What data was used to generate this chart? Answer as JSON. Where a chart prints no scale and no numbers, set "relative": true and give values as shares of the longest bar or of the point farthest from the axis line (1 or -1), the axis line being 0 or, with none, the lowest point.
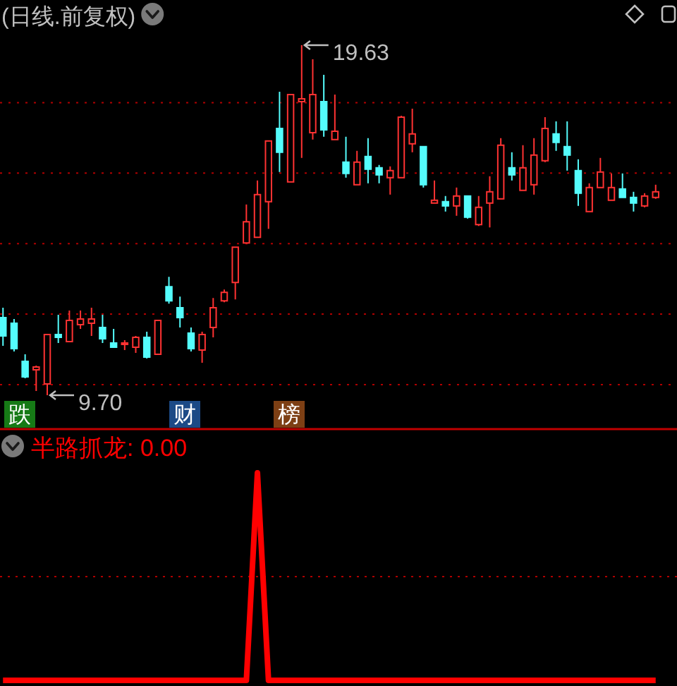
{
  "chart_data": [
    {
      "type": "candlestick",
      "title": "(日线.前复权)",
      "categories": [
        null,
        null,
        null,
        null,
        null,
        null,
        null,
        null,
        null,
        null,
        null,
        null,
        null,
        null,
        null,
        null,
        null,
        null,
        null,
        null,
        null,
        null,
        null,
        null,
        null,
        null,
        null,
        null,
        null,
        null,
        null,
        null,
        null,
        null,
        null,
        null,
        null,
        null,
        null,
        null,
        null,
        null,
        null,
        null,
        null,
        null,
        null,
        null,
        null,
        null,
        null,
        null,
        null,
        null,
        null,
        null,
        null,
        null,
        null,
        null
      ],
      "ohlc": [
        [
          11.9,
          12.18,
          11.1,
          11.38
        ],
        [
          11.74,
          11.86,
          10.94,
          11.02
        ],
        [
          10.66,
          10.86,
          10.18,
          10.22
        ],
        [
          10.42,
          10.54,
          9.82,
          10.5
        ],
        [
          10.02,
          11.42,
          9.7,
          11.42
        ],
        [
          11.42,
          11.98,
          11.18,
          11.34
        ],
        [
          11.22,
          12.1,
          11.22,
          11.82
        ],
        [
          11.7,
          12.1,
          11.58,
          11.86
        ],
        [
          11.74,
          12.18,
          11.38,
          11.86
        ],
        [
          11.62,
          11.98,
          11.18,
          11.3
        ],
        [
          11.18,
          11.58,
          11.06,
          11.06
        ],
        [
          11.14,
          11.26,
          10.98,
          11.18
        ],
        [
          11.06,
          11.38,
          10.9,
          11.34
        ],
        [
          11.34,
          11.5,
          10.74,
          10.78
        ],
        [
          10.86,
          11.82,
          10.86,
          11.82
        ],
        [
          12.78,
          13.06,
          12.3,
          12.38
        ],
        [
          12.18,
          12.5,
          11.62,
          11.9
        ],
        [
          11.46,
          11.62,
          10.94,
          11.02
        ],
        [
          10.98,
          11.5,
          10.62,
          11.42
        ],
        [
          11.62,
          12.46,
          11.34,
          12.18
        ],
        [
          12.38,
          12.7,
          12.34,
          12.62
        ],
        [
          12.9,
          13.9,
          12.42,
          13.9
        ],
        [
          14.02,
          15.11,
          14.02,
          14.62
        ],
        [
          14.18,
          15.79,
          14.18,
          15.39
        ],
        [
          15.19,
          16.91,
          14.42,
          16.91
        ],
        [
          17.27,
          18.31,
          16.03,
          16.59
        ],
        [
          15.75,
          18.23,
          15.75,
          18.23
        ],
        [
          18.03,
          19.63,
          16.43,
          18.11
        ],
        [
          17.15,
          19.23,
          16.95,
          18.23
        ],
        [
          18.03,
          18.79,
          17.03,
          17.23
        ],
        [
          16.95,
          18.23,
          16.95,
          17.19
        ],
        [
          16.31,
          17.03,
          15.87,
          15.99
        ],
        [
          15.67,
          16.63,
          15.67,
          16.31
        ],
        [
          16.47,
          16.99,
          15.71,
          16.11
        ],
        [
          16.15,
          16.23,
          15.71,
          15.95
        ],
        [
          15.87,
          16.19,
          15.39,
          16.07
        ],
        [
          15.87,
          17.63,
          15.87,
          17.59
        ],
        [
          16.83,
          17.83,
          16.59,
          17.11
        ],
        [
          16.75,
          16.75,
          15.59,
          15.67
        ],
        [
          15.15,
          15.79,
          15.15,
          15.23
        ],
        [
          15.19,
          15.35,
          14.91,
          15.07
        ],
        [
          15.07,
          15.59,
          14.79,
          15.35
        ],
        [
          15.35,
          15.35,
          14.71,
          14.75
        ],
        [
          14.54,
          15.35,
          14.5,
          15.03
        ],
        [
          15.15,
          15.91,
          14.46,
          15.47
        ],
        [
          15.27,
          16.99,
          15.27,
          16.79
        ],
        [
          16.15,
          16.59,
          15.79,
          15.95
        ],
        [
          15.51,
          16.79,
          15.51,
          16.15
        ],
        [
          15.67,
          16.99,
          15.39,
          16.51
        ],
        [
          16.35,
          17.59,
          16.31,
          17.27
        ],
        [
          17.11,
          17.47,
          16.63,
          16.87
        ],
        [
          16.75,
          17.47,
          16.07,
          16.51
        ],
        [
          16.07,
          16.39,
          15.07,
          15.43
        ],
        [
          14.91,
          15.71,
          14.91,
          15.59
        ],
        [
          15.59,
          16.43,
          15.59,
          16.03
        ],
        [
          15.23,
          15.99,
          15.23,
          15.59
        ],
        [
          15.55,
          15.99,
          15.31,
          15.31
        ],
        [
          15.31,
          15.47,
          14.91,
          15.15
        ],
        [
          15.07,
          15.43,
          15.03,
          15.35
        ],
        [
          15.31,
          15.67,
          15.27,
          15.47
        ]
      ],
      "colors": [
        "#54fcfc",
        "#54fcfc",
        "#54fcfc",
        "#ff3232",
        "#ff3232",
        "#54fcfc",
        "#ff3232",
        "#ff3232",
        "#ff3232",
        "#54fcfc",
        "#54fcfc",
        "#ff3232",
        "#ff3232",
        "#54fcfc",
        "#ff3232",
        "#54fcfc",
        "#54fcfc",
        "#54fcfc",
        "#ff3232",
        "#ff3232",
        "#ff3232",
        "#ff3232",
        "#ff3232",
        "#ff3232",
        "#ff3232",
        "#54fcfc",
        "#ff3232",
        "#ff3232",
        "#ff3232",
        "#54fcfc",
        "#ff3232",
        "#54fcfc",
        "#ff3232",
        "#54fcfc",
        "#54fcfc",
        "#ff3232",
        "#ff3232",
        "#ff3232",
        "#54fcfc",
        "#ff3232",
        "#54fcfc",
        "#ff3232",
        "#54fcfc",
        "#ff3232",
        "#ff3232",
        "#ff3232",
        "#54fcfc",
        "#ff3232",
        "#ff3232",
        "#ff3232",
        "#54fcfc",
        "#54fcfc",
        "#54fcfc",
        "#ff3232",
        "#ff3232",
        "#ff3232",
        "#54fcfc",
        "#54fcfc",
        "#ff3232",
        "#ff3232"
      ],
      "yticks": [
        {
          "value": 10,
          "label": null
        },
        {
          "value": 12,
          "label": null
        },
        {
          "value": 14,
          "label": null
        },
        {
          "value": 16,
          "label": null
        },
        {
          "value": 18,
          "label": null
        }
      ],
      "grid": "y",
      "tick_labels": false,
      "annotations": [
        "19.63",
        "9.70",
        "跌",
        "财",
        "榜"
      ]
    },
    {
      "type": "line",
      "title": "半路抓龙: 0.00",
      "categories": [
        null,
        null,
        null,
        null,
        null,
        null,
        null,
        null,
        null,
        null,
        null,
        null,
        null,
        null,
        null,
        null,
        null,
        null,
        null,
        null,
        null,
        null,
        null,
        null,
        null,
        null,
        null,
        null,
        null,
        null,
        null,
        null,
        null,
        null,
        null,
        null,
        null,
        null,
        null,
        null,
        null,
        null,
        null,
        null,
        null,
        null,
        null,
        null,
        null,
        null,
        null,
        null,
        null,
        null,
        null,
        null,
        null,
        null,
        null,
        null
      ],
      "series": [
        {
          "color": "#ff0000",
          "values": [
            0,
            0,
            0,
            0,
            0,
            0,
            0,
            0,
            0,
            0,
            0,
            0,
            0,
            0,
            0,
            0,
            0,
            0,
            0,
            0,
            0,
            0,
            0,
            1,
            0,
            0,
            0,
            0,
            0,
            0,
            0,
            0,
            0,
            0,
            0,
            0,
            0,
            0,
            0,
            0,
            0,
            0,
            0,
            0,
            0,
            0,
            0,
            0,
            0,
            0,
            0,
            0,
            0,
            0,
            0,
            0,
            0,
            0,
            0,
            0
          ]
        }
      ],
      "relative": true,
      "ref_lines": [
        {
          "axis": "y",
          "value": 0.5,
          "line_style": "dotted",
          "color": "#b00000"
        }
      ],
      "tick_labels": false
    }
  ]
}
